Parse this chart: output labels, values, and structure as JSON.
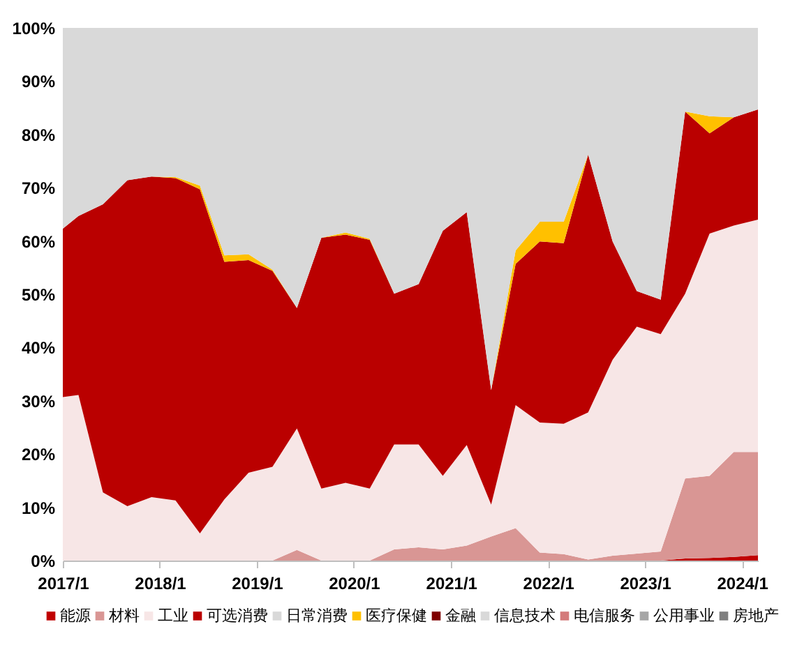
{
  "chart_data": {
    "type": "area",
    "stacked": true,
    "x": [
      "2017-01",
      "2017-03",
      "2017-06",
      "2017-09",
      "2017-12",
      "2018-03",
      "2018-06",
      "2018-09",
      "2018-12",
      "2019-03",
      "2019-06",
      "2019-09",
      "2019-12",
      "2020-03",
      "2020-06",
      "2020-09",
      "2020-12",
      "2021-03",
      "2021-06",
      "2021-09",
      "2021-12",
      "2022-03",
      "2022-06",
      "2022-09",
      "2022-12",
      "2023-03",
      "2023-06",
      "2023-09",
      "2023-12",
      "2024-03"
    ],
    "series": [
      {
        "name": "能源",
        "color": "#c00000",
        "values": [
          0,
          0,
          0,
          0,
          0,
          0,
          0,
          0,
          0,
          0,
          0,
          0,
          0,
          0,
          0,
          0,
          0,
          0,
          0,
          0,
          0,
          0,
          0,
          0,
          0,
          0,
          0.4,
          0.5,
          0.7,
          1.0
        ]
      },
      {
        "name": "材料",
        "color": "#d99694",
        "values": [
          0,
          0,
          0,
          0,
          0,
          0,
          0,
          0,
          0,
          0,
          2.0,
          0,
          0,
          0,
          2.1,
          2.5,
          2.1,
          2.8,
          4.5,
          6.1,
          1.5,
          1.2,
          0.2,
          0.9,
          1.3,
          1.7,
          15.0,
          15.4,
          19.7,
          19.4
        ]
      },
      {
        "name": "工业",
        "color": "#f7e6e6",
        "values": [
          30.7,
          31.1,
          12.8,
          10.2,
          11.9,
          11.3,
          5.1,
          11.5,
          16.5,
          17.6,
          22.8,
          13.5,
          14.6,
          13.5,
          19.7,
          19.3,
          13.8,
          18.9,
          6.0,
          23.1,
          24.4,
          24.5,
          27.6,
          36.8,
          42.6,
          40.8,
          34.7,
          45.5,
          42.5,
          43.6
        ]
      },
      {
        "name": "可选消费",
        "color": "#ba0000",
        "values": [
          31.6,
          33.6,
          54.1,
          61.2,
          60.2,
          60.5,
          64.6,
          44.6,
          39.9,
          36.8,
          22.6,
          47.1,
          46.6,
          46.7,
          28.3,
          30.1,
          46.0,
          43.7,
          21.5,
          26.5,
          34.0,
          33.9,
          48.4,
          22.2,
          6.7,
          6.5,
          34.2,
          18.8,
          20.3,
          20.7
        ]
      },
      {
        "name": "日常消费",
        "color": "#d9d9d9",
        "values": [
          null,
          null,
          null,
          null,
          null,
          null,
          null,
          null,
          null,
          null,
          null,
          null,
          null,
          null,
          null,
          null,
          null,
          null,
          null,
          null,
          null,
          null,
          null,
          null,
          null,
          null,
          null,
          null,
          null,
          null
        ]
      },
      {
        "name": "医疗保健",
        "color": "#ffc000",
        "values": [
          0,
          0,
          0,
          0,
          0,
          0.2,
          0.7,
          1.2,
          1.1,
          0.2,
          0,
          0,
          0.4,
          0.2,
          0,
          0,
          0,
          0,
          0,
          2.5,
          3.7,
          4.0,
          0,
          0,
          0,
          0,
          0,
          3.2,
          0,
          0
        ]
      },
      {
        "name": "金融",
        "color": "#7f0000",
        "values": [
          null,
          null,
          null,
          null,
          null,
          null,
          null,
          null,
          null,
          null,
          null,
          null,
          null,
          null,
          null,
          null,
          null,
          null,
          null,
          null,
          null,
          null,
          null,
          null,
          null,
          null,
          null,
          null,
          null,
          null
        ]
      },
      {
        "name": "信息技术",
        "color": "#d9d9d9",
        "values": [
          37.7,
          35.3,
          33.1,
          28.6,
          27.9,
          28.0,
          29.6,
          42.7,
          42.5,
          45.4,
          52.6,
          39.4,
          38.4,
          39.6,
          49.9,
          48.1,
          38.1,
          34.6,
          68.0,
          41.8,
          36.4,
          36.4,
          23.8,
          40.1,
          49.4,
          51.0,
          15.7,
          16.6,
          16.8,
          15.3
        ]
      },
      {
        "name": "电信服务",
        "color": "#d47b7b",
        "values": [
          null,
          null,
          null,
          null,
          null,
          null,
          null,
          null,
          null,
          null,
          null,
          null,
          null,
          null,
          null,
          null,
          null,
          null,
          null,
          null,
          null,
          null,
          null,
          null,
          null,
          null,
          null,
          null,
          null,
          null
        ]
      },
      {
        "name": "公用事业",
        "color": "#a6a6a6",
        "values": [
          null,
          null,
          null,
          null,
          null,
          null,
          null,
          null,
          null,
          null,
          null,
          null,
          null,
          null,
          null,
          null,
          null,
          null,
          null,
          null,
          null,
          null,
          null,
          null,
          null,
          null,
          null,
          null,
          null,
          null
        ]
      },
      {
        "name": "房地产",
        "color": "#808080",
        "values": [
          null,
          null,
          null,
          null,
          null,
          null,
          null,
          null,
          null,
          null,
          null,
          null,
          null,
          null,
          null,
          null,
          null,
          null,
          null,
          null,
          null,
          null,
          null,
          null,
          null,
          null,
          null,
          null,
          null,
          null
        ]
      }
    ],
    "xlim": [
      "2017-01",
      "2024-03"
    ],
    "xticks": [
      {
        "value": "2017-01",
        "label": "2017/1"
      },
      {
        "value": "2018-01",
        "label": "2018/1"
      },
      {
        "value": "2019-01",
        "label": "2019/1"
      },
      {
        "value": "2020-01",
        "label": "2020/1"
      },
      {
        "value": "2021-01",
        "label": "2021/1"
      },
      {
        "value": "2022-01",
        "label": "2022/1"
      },
      {
        "value": "2023-01",
        "label": "2023/1"
      },
      {
        "value": "2024-01",
        "label": "2024/1"
      }
    ],
    "ylim": [
      0,
      100
    ],
    "yticks": [
      {
        "value": 0,
        "label": "0%"
      },
      {
        "value": 10,
        "label": "10%"
      },
      {
        "value": 20,
        "label": "20%"
      },
      {
        "value": 30,
        "label": "30%"
      },
      {
        "value": 40,
        "label": "40%"
      },
      {
        "value": 50,
        "label": "50%"
      },
      {
        "value": 60,
        "label": "60%"
      },
      {
        "value": 70,
        "label": "70%"
      },
      {
        "value": 80,
        "label": "80%"
      },
      {
        "value": 90,
        "label": "90%"
      },
      {
        "value": 100,
        "label": "100%"
      }
    ],
    "grid": false,
    "legend": "bottom"
  }
}
